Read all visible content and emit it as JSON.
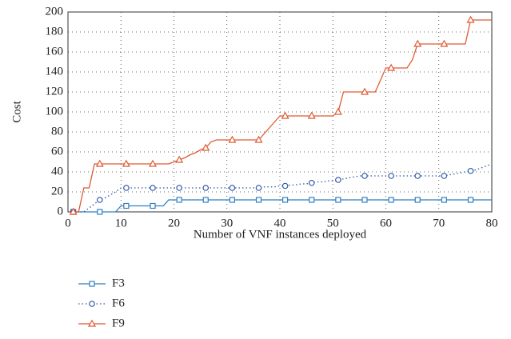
{
  "chart_data": {
    "type": "line",
    "xlabel": "Number of VNF instances deployed",
    "ylabel": "Cost",
    "xlim": [
      0,
      80
    ],
    "ylim": [
      0,
      200
    ],
    "xticks": [
      0,
      10,
      20,
      30,
      40,
      50,
      60,
      70,
      80
    ],
    "yticks": [
      0,
      20,
      40,
      60,
      80,
      100,
      120,
      140,
      160,
      180,
      200
    ],
    "grid": true,
    "legend": "bottom-left",
    "marker_every": 5,
    "x": [
      1,
      2,
      3,
      4,
      5,
      6,
      7,
      8,
      9,
      10,
      11,
      12,
      13,
      14,
      15,
      16,
      17,
      18,
      19,
      20,
      21,
      22,
      23,
      24,
      25,
      26,
      27,
      28,
      29,
      30,
      31,
      32,
      33,
      34,
      35,
      36,
      37,
      38,
      39,
      40,
      41,
      42,
      43,
      44,
      45,
      46,
      47,
      48,
      49,
      50,
      51,
      52,
      53,
      54,
      55,
      56,
      57,
      58,
      59,
      60,
      61,
      62,
      63,
      64,
      65,
      66,
      67,
      68,
      69,
      70,
      71,
      72,
      73,
      74,
      75,
      76,
      77,
      78,
      79,
      80
    ],
    "series": [
      {
        "name": "F3",
        "color": "#2f7fc1",
        "marker": "square",
        "dash": "solid",
        "values": [
          0,
          0,
          0,
          0,
          0,
          0,
          0,
          0,
          0,
          6,
          6,
          6,
          6,
          6,
          6,
          6,
          6,
          6,
          12,
          12,
          12,
          12,
          12,
          12,
          12,
          12,
          12,
          12,
          12,
          12,
          12,
          12,
          12,
          12,
          12,
          12,
          12,
          12,
          12,
          12,
          12,
          12,
          12,
          12,
          12,
          12,
          12,
          12,
          12,
          12,
          12,
          12,
          12,
          12,
          12,
          12,
          12,
          12,
          12,
          12,
          12,
          12,
          12,
          12,
          12,
          12,
          12,
          12,
          12,
          12,
          12,
          12,
          12,
          12,
          12,
          12,
          12,
          12,
          12,
          12
        ]
      },
      {
        "name": "F6",
        "color": "#2d57a8",
        "marker": "circle",
        "dash": "dotted",
        "values": [
          0,
          0,
          0,
          4,
          8,
          12,
          14,
          17,
          20,
          24,
          24,
          24,
          24,
          24,
          24,
          24,
          24,
          24,
          24,
          24,
          24,
          24,
          24,
          24,
          24,
          24,
          24,
          24,
          24,
          24,
          24,
          24,
          24,
          24,
          24,
          24,
          25,
          25,
          25,
          26,
          26,
          27,
          27,
          28,
          28,
          29,
          30,
          30,
          31,
          31,
          32,
          33,
          34,
          35,
          36,
          36,
          36,
          36,
          36,
          36,
          36,
          36,
          36,
          36,
          36,
          36,
          36,
          36,
          36,
          36,
          36,
          37,
          38,
          39,
          40,
          41,
          42,
          44,
          46,
          48
        ]
      },
      {
        "name": "F9",
        "color": "#e05a32",
        "marker": "triangle",
        "dash": "solid",
        "values": [
          0,
          0,
          24,
          24,
          48,
          48,
          48,
          48,
          48,
          48,
          48,
          48,
          48,
          48,
          48,
          48,
          48,
          48,
          48,
          50,
          52,
          54,
          57,
          59,
          62,
          64,
          70,
          72,
          72,
          72,
          72,
          72,
          72,
          72,
          72,
          72,
          78,
          84,
          90,
          96,
          96,
          96,
          96,
          96,
          96,
          96,
          96,
          96,
          96,
          96,
          100,
          120,
          120,
          120,
          120,
          120,
          120,
          120,
          132,
          144,
          144,
          144,
          144,
          144,
          152,
          168,
          168,
          168,
          168,
          168,
          168,
          168,
          168,
          168,
          168,
          192,
          192,
          192,
          192,
          192
        ]
      }
    ]
  }
}
